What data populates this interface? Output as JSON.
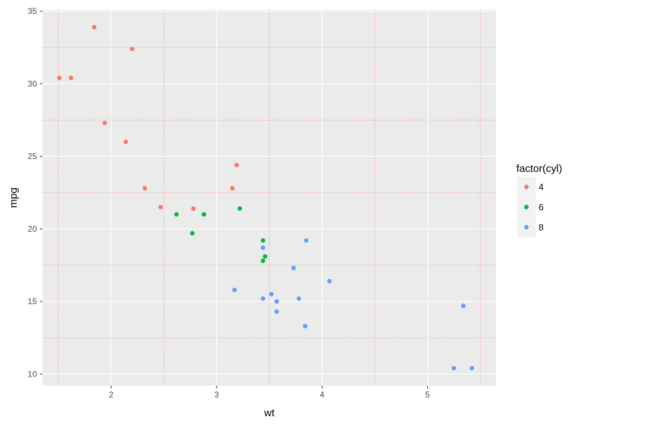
{
  "chart_data": {
    "type": "scatter",
    "xlabel": "wt",
    "ylabel": "mpg",
    "xlim": [
      1.35,
      5.65
    ],
    "ylim": [
      9.2,
      35.1
    ],
    "x_ticks": [
      2,
      3,
      4,
      5
    ],
    "y_ticks": [
      10,
      15,
      20,
      25,
      30,
      35
    ],
    "x_tick_labels": [
      "2",
      "3",
      "4",
      "5"
    ],
    "y_tick_labels": [
      "10",
      "15",
      "20",
      "25",
      "30",
      "35"
    ],
    "grid": true,
    "panel_background": "#ebebeb",
    "major_grid_color": "#ffffff",
    "minor_grid_color": "#ee8888",
    "x_minor_gridlines": [
      1.5,
      2.5,
      3.5,
      4.5,
      5.5
    ],
    "y_minor_gridlines": [
      12.5,
      17.5,
      22.5,
      27.5,
      32.5
    ],
    "legend": {
      "title": "factor(cyl)",
      "placement": "right",
      "entries": [
        {
          "label": "4",
          "color": "#f8766d"
        },
        {
          "label": "6",
          "color": "#00ba38"
        },
        {
          "label": "8",
          "color": "#619cff"
        }
      ]
    },
    "series": [
      {
        "name": "4",
        "color": "#f8766d",
        "points": [
          [
            1.51,
            30.4
          ],
          [
            1.62,
            30.4
          ],
          [
            1.84,
            33.9
          ],
          [
            1.94,
            27.3
          ],
          [
            2.14,
            26.0
          ],
          [
            2.2,
            32.4
          ],
          [
            2.32,
            22.8
          ],
          [
            2.47,
            21.5
          ],
          [
            2.78,
            21.4
          ],
          [
            3.15,
            22.8
          ],
          [
            3.19,
            24.4
          ]
        ]
      },
      {
        "name": "6",
        "color": "#00ba38",
        "points": [
          [
            2.62,
            21.0
          ],
          [
            2.77,
            19.7
          ],
          [
            2.88,
            21.0
          ],
          [
            3.22,
            21.4
          ],
          [
            3.44,
            19.2
          ],
          [
            3.44,
            17.8
          ],
          [
            3.46,
            18.1
          ]
        ]
      },
      {
        "name": "8",
        "color": "#619cff",
        "points": [
          [
            3.17,
            15.8
          ],
          [
            3.44,
            15.2
          ],
          [
            3.44,
            18.7
          ],
          [
            3.52,
            15.5
          ],
          [
            3.57,
            15.0
          ],
          [
            3.57,
            14.3
          ],
          [
            3.73,
            17.3
          ],
          [
            3.78,
            15.2
          ],
          [
            3.84,
            13.3
          ],
          [
            3.85,
            19.2
          ],
          [
            4.07,
            16.4
          ],
          [
            5.25,
            10.4
          ],
          [
            5.34,
            14.7
          ],
          [
            5.42,
            10.4
          ]
        ]
      }
    ]
  }
}
